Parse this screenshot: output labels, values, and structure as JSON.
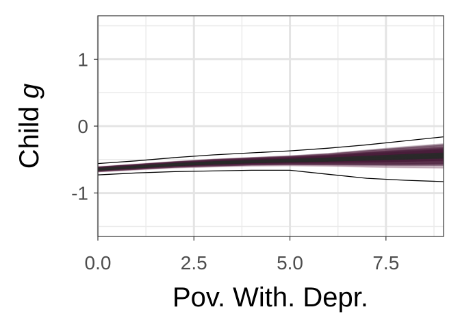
{
  "chart_data": {
    "type": "line",
    "title": "",
    "xlabel": "Pov. With. Depr.",
    "ylabel_text": "Child ",
    "ylabel_italic": "g",
    "xlim": [
      0,
      9
    ],
    "ylim": [
      -1.65,
      1.65
    ],
    "x_major_ticks": [
      0,
      2.5,
      5,
      7.5
    ],
    "x_tick_labels": [
      "0.0",
      "2.5",
      "5.0",
      "7.5"
    ],
    "y_major_ticks": [
      -1,
      0,
      1
    ],
    "y_tick_labels": [
      "-1",
      "0",
      "1"
    ],
    "x_minor_ticks": [
      1.25,
      3.75,
      6.25,
      8.75
    ],
    "y_minor_ticks": [
      -1.5,
      -0.5,
      0.5,
      1.5
    ],
    "grid": true,
    "series": [
      {
        "role": "band-upper",
        "color": "#000000",
        "x": [
          0,
          1,
          2,
          3,
          4,
          5,
          6,
          7,
          8,
          9
        ],
        "y": [
          -0.56,
          -0.52,
          -0.47,
          -0.43,
          -0.4,
          -0.37,
          -0.33,
          -0.28,
          -0.22,
          -0.16
        ]
      },
      {
        "role": "band-lower",
        "color": "#000000",
        "x": [
          0,
          1,
          2,
          3,
          4,
          5,
          6,
          7,
          8,
          9
        ],
        "y": [
          -0.73,
          -0.7,
          -0.68,
          -0.67,
          -0.66,
          -0.66,
          -0.72,
          -0.78,
          -0.81,
          -0.83
        ]
      }
    ],
    "posterior_draws": {
      "color": "#4a1f3e",
      "fade_color": "#b7889f",
      "center": [
        -0.645,
        -0.61,
        -0.575,
        -0.55,
        -0.53,
        -0.515,
        -0.5,
        -0.48,
        -0.46,
        -0.44
      ],
      "spread": [
        0.08,
        0.09,
        0.1,
        0.12,
        0.13,
        0.15,
        0.19,
        0.25,
        0.3,
        0.34
      ]
    }
  }
}
